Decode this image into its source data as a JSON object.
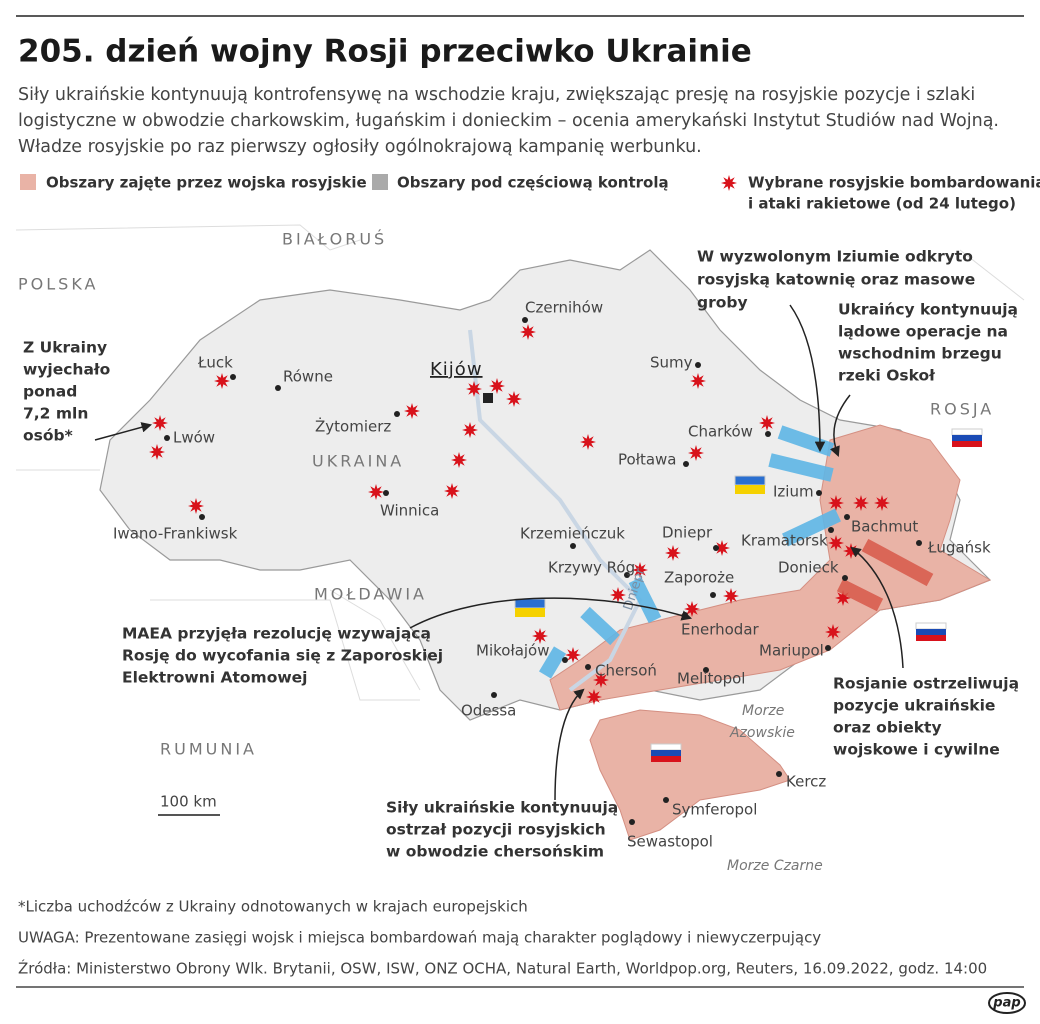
{
  "header": {
    "title": "205. dzień wojny Rosji przeciwko Ukrainie",
    "subtitle": [
      "Siły ukraińskie kontynuują kontrofensywę na wschodzie kraju, zwiększając presję na rosyjskie pozycje i szlaki",
      "logistyczne w obwodzie charkowskim, ługańskim i donieckim – ocenia amerykański Instytut Studiów nad Wojną.",
      "Władze rosyjskie po raz pierwszy ogłosiły ogólnokrajową kampanię werbunku."
    ]
  },
  "legend": [
    {
      "lines": [
        "Obszary zajęte przez wojska rosyjskie"
      ]
    },
    {
      "lines": [
        "Obszary pod częściową kontrolą"
      ]
    },
    {
      "lines": [
        "Wybrane rosyjskie bombardowania",
        "i ataki rakietowe (od 24 lutego)"
      ]
    }
  ],
  "map": {
    "countries": [
      "BIAŁORUŚ",
      "POLSKA",
      "ROSJA",
      "MOŁDAWIA",
      "RUMUNIA",
      "UKRAINA"
    ],
    "cities": [
      "Czernihów",
      "Sumy",
      "Łuck",
      "Równe",
      "Kijów",
      "Żytomierz",
      "Lwów",
      "Charków",
      "Połtawa",
      "Izium",
      "Winnica",
      "Iwano-Frankiwsk",
      "Krzemieńczuk",
      "Dniepr",
      "Kramatorsk",
      "Bachmut",
      "Ługańsk",
      "Krzywy Róg",
      "Zaporoże",
      "Donieck",
      "Enerhodar",
      "Mikołajów",
      "Chersoń",
      "Mariupol",
      "Melitopol",
      "Odessa",
      "Kercz",
      "Symferopol",
      "Sewastopol"
    ],
    "river": "Dniepr",
    "seas": [
      {
        "lines": [
          "Morze",
          "Azowskie"
        ]
      },
      {
        "lines": [
          "Morze Czarne"
        ]
      }
    ],
    "scale": "100 km"
  },
  "annotations": [
    {
      "lines": [
        "Z Ukrainy",
        "wyjechało",
        "ponad",
        "7,2 mln",
        "osób*"
      ]
    },
    {
      "lines": [
        "W wyzwolonym Iziumie odkryto",
        "rosyjską katownię oraz masowe",
        "groby"
      ]
    },
    {
      "lines": [
        "Ukraińcy kontynuują",
        "lądowe operacje na",
        "wschodnim brzegu",
        "rzeki Oskoł"
      ]
    },
    {
      "lines": [
        "MAEA przyjęła rezolucję wzywającą",
        "Rosję do wycofania się z Zaporoskiej",
        "Elektrowni Atomowej"
      ]
    },
    {
      "lines": [
        "Rosjanie ostrzeliwują",
        "pozycje ukraińskie",
        "oraz obiekty",
        "wojskowe i cywilne"
      ]
    },
    {
      "lines": [
        "Siły ukraińskie kontynuują",
        "ostrzał pozycji rosyjskich",
        "w obwodzie chersońskim"
      ]
    }
  ],
  "footer": [
    "*Liczba uchodźców z Ukrainy odnotowanych w krajach europejskich",
    "UWAGA: Prezentowane zasięgi wojsk i miejsca bombardowań mają charakter poglądowy i niewyczerpujący",
    "Źródła: Ministerstwo Obrony Wlk. Brytanii, OSW, ISW, ONZ OCHA, Natural Earth, Worldpop.org, Reuters, 16.09.2022, godz. 14:00"
  ],
  "logo": "pap"
}
